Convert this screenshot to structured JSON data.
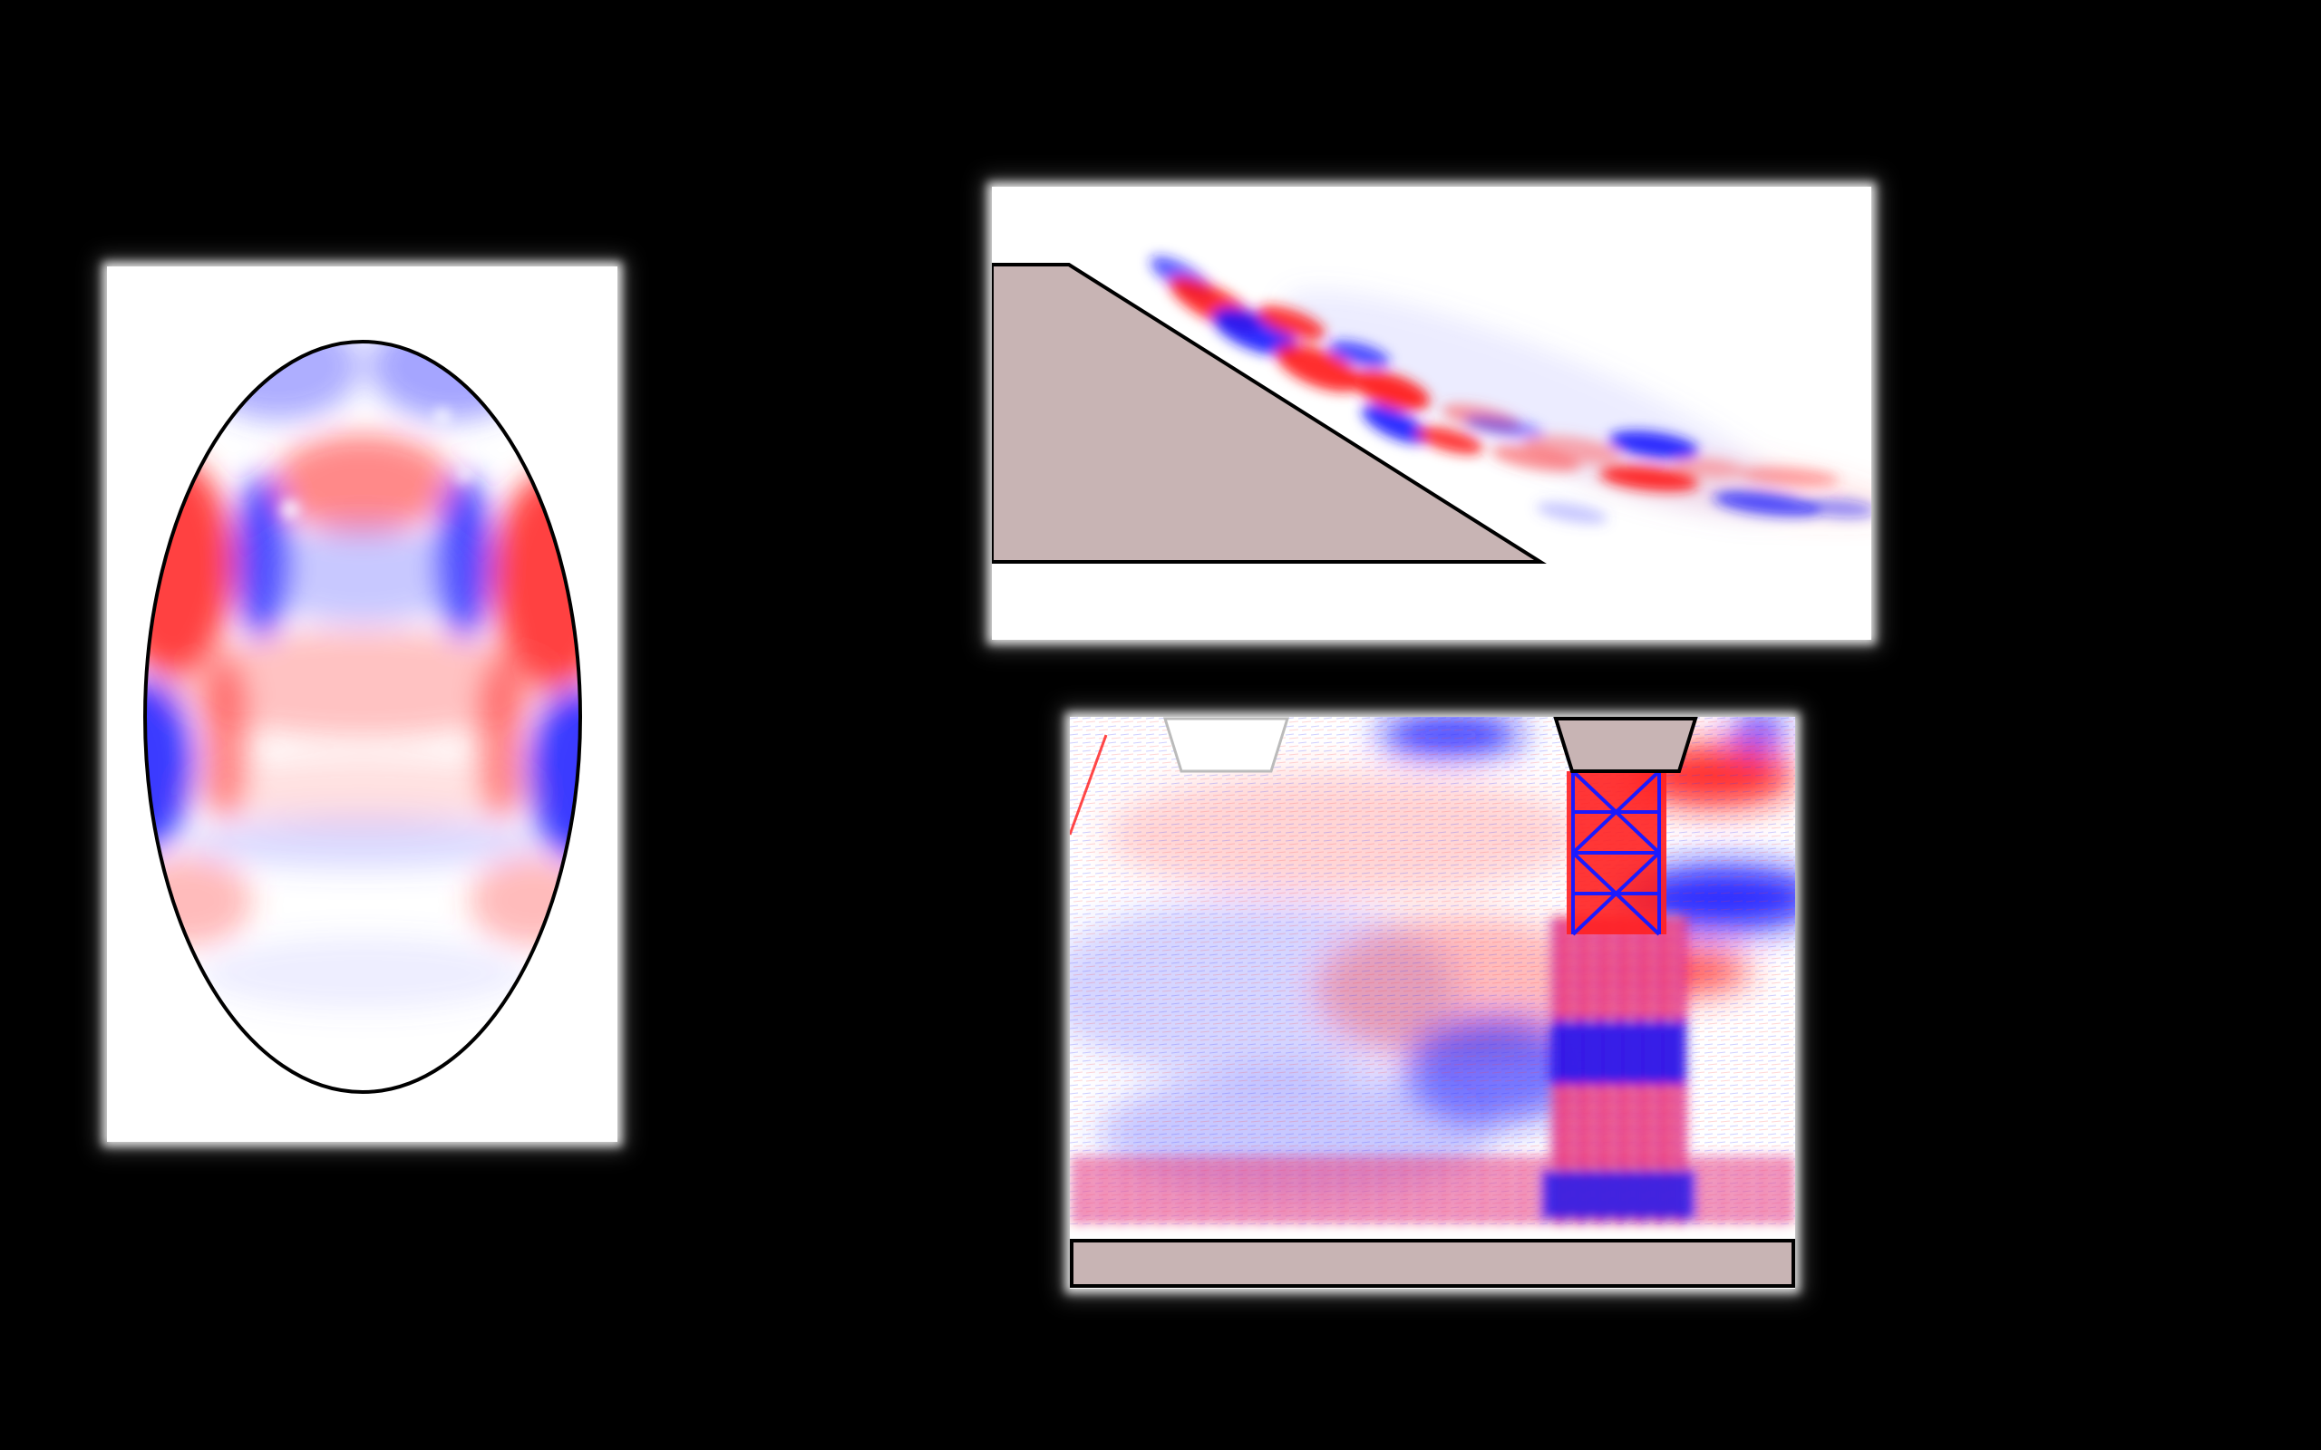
{
  "colors": {
    "background": "#000000",
    "panel_fill": "#ffffff",
    "positive_field": "#ff1a1a",
    "negative_field": "#1a1aff",
    "solid_body": "#c8b4b4",
    "outline": "#000000"
  },
  "panels": [
    {
      "name": "ellipse-cavity-panel",
      "shape": "ellipse"
    },
    {
      "name": "slope-panel",
      "shape": "wedge"
    },
    {
      "name": "tower-panel",
      "shape": "tower-on-slab"
    }
  ]
}
